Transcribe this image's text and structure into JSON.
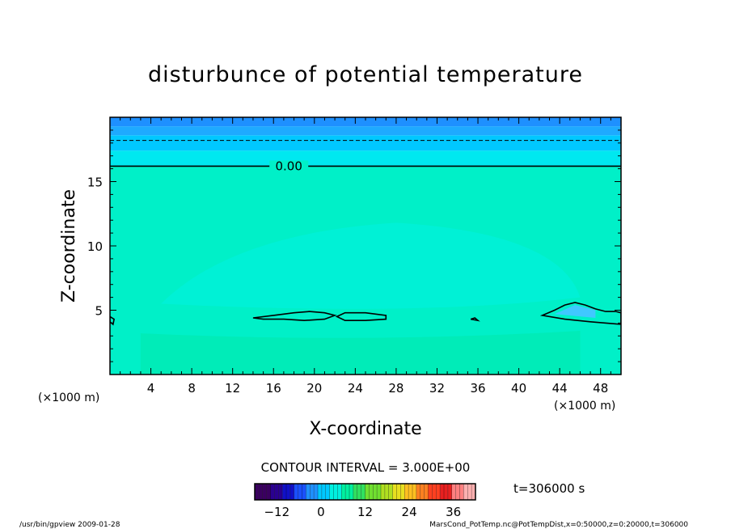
{
  "chart_data": {
    "type": "heatmap",
    "title": "disturbunce of potential temperature",
    "xlabel": "X-coordinate",
    "ylabel": "Z-coordinate",
    "x_unit": "(×1000 m)",
    "y_unit": "(×1000 m)",
    "xlim": [
      0,
      50
    ],
    "ylim": [
      0,
      20
    ],
    "x_ticks": [
      4,
      8,
      12,
      16,
      20,
      24,
      28,
      32,
      36,
      40,
      44,
      48
    ],
    "y_ticks": [
      5,
      10,
      15
    ],
    "contour_label": "0.00",
    "contour_level_z": 16.2,
    "dashed_line_z": 18.2,
    "contour_interval_text": "CONTOUR INTERVAL = 3.000E+00",
    "time_text": "t=306000 s",
    "colorbar": {
      "min": -18,
      "max": 42,
      "ticks": [
        -12,
        0,
        12,
        24,
        36
      ],
      "colors": [
        "#3a0060",
        "#2a0090",
        "#1010c8",
        "#1a50ff",
        "#1e90ff",
        "#00c8ff",
        "#00f0e0",
        "#00f0a0",
        "#30e060",
        "#70e030",
        "#b0e020",
        "#e8e020",
        "#ffc020",
        "#ff8020",
        "#ff4020",
        "#e82020",
        "#ff8080",
        "#ffb0b0"
      ]
    },
    "bands": [
      {
        "z0": 0.0,
        "z1": 16.2,
        "color": "#00f0c8"
      },
      {
        "z0": 16.2,
        "z1": 17.4,
        "color": "#00e8f0"
      },
      {
        "z0": 17.4,
        "z1": 18.6,
        "color": "#00c8ff"
      },
      {
        "z0": 18.6,
        "z1": 19.3,
        "color": "#1eaaff"
      },
      {
        "z0": 19.3,
        "z1": 20.0,
        "color": "#1e90ff"
      }
    ],
    "closed_contours": [
      {
        "x": [
          14.0,
          16.0,
          17.0,
          18.0,
          19.5,
          21.0,
          22.0,
          21.0,
          19.0,
          17.0,
          15.0,
          14.0
        ],
        "z": [
          4.4,
          4.6,
          4.7,
          4.8,
          4.9,
          4.8,
          4.6,
          4.3,
          4.2,
          4.3,
          4.3,
          4.4
        ]
      },
      {
        "x": [
          22.2,
          23.0,
          25.0,
          27.0,
          27.0,
          25.0,
          23.0,
          22.2
        ],
        "z": [
          4.5,
          4.8,
          4.8,
          4.6,
          4.3,
          4.2,
          4.2,
          4.5
        ]
      },
      {
        "x": [
          35.3,
          35.7,
          36.0,
          35.3
        ],
        "z": [
          4.3,
          4.4,
          4.2,
          4.3
        ]
      },
      {
        "x": [
          42.3,
          43.5,
          44.5,
          45.5,
          46.5,
          47.5,
          48.5,
          49.5,
          50.0,
          50.0,
          47.0,
          44.5,
          42.3
        ],
        "z": [
          4.6,
          5.0,
          5.4,
          5.6,
          5.4,
          5.1,
          4.9,
          4.9,
          4.8,
          3.9,
          4.1,
          4.3,
          4.6
        ]
      },
      {
        "x": [
          0.0,
          0.4,
          0.3,
          0.0
        ],
        "z": [
          4.5,
          4.3,
          3.9,
          4.1
        ]
      }
    ],
    "footer_left": "/usr/bin/gpview   2009-01-28",
    "footer_right": "MarsCond_PotTemp.nc@PotTempDist,x=0:50000,z=0:20000,t=306000"
  }
}
